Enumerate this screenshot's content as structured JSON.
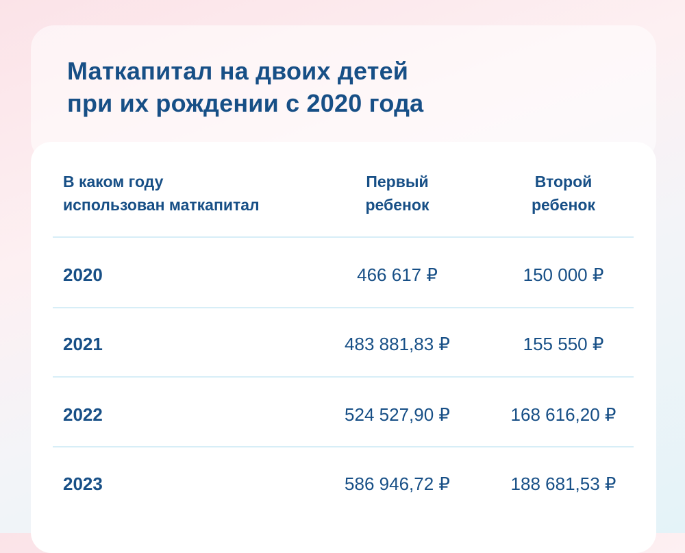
{
  "title": {
    "line1": "Маткапитал на двоих детей",
    "line2": "при их рождении с 2020 года"
  },
  "table": {
    "headers": {
      "year": [
        "В каком году",
        "использован маткапитал"
      ],
      "first": [
        "Первый",
        "ребенок"
      ],
      "second": [
        "Второй",
        "ребенок"
      ]
    },
    "rows": [
      {
        "year": "2020",
        "first": "466 617 ₽",
        "second": "150 000 ₽"
      },
      {
        "year": "2021",
        "first": "483 881,83 ₽",
        "second": "155 550 ₽"
      },
      {
        "year": "2022",
        "first": "524 527,90 ₽",
        "second": "168 616,20 ₽"
      },
      {
        "year": "2023",
        "first": "586 946,72 ₽",
        "second": "188 681,53 ₽"
      }
    ]
  },
  "colors": {
    "text": "#174f86",
    "divider": "#d7eef7"
  }
}
